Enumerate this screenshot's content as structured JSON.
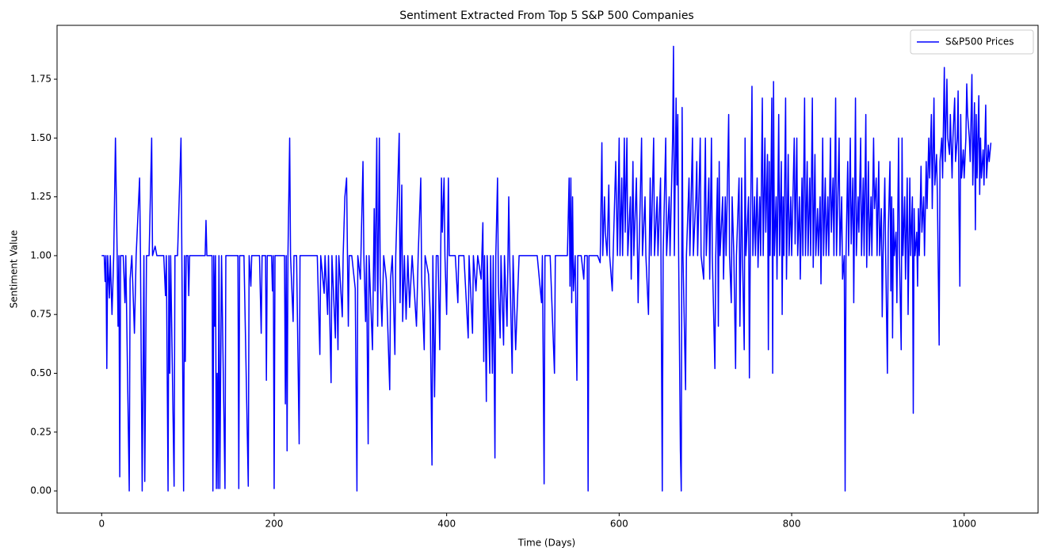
{
  "chart_data": {
    "type": "line",
    "title": "Sentiment Extracted From Top 5 S&P 500 Companies",
    "x_label": "Time (Days)",
    "y_label": "Sentiment Value",
    "legend": "upper right",
    "grid": false,
    "xlim": [
      -51.7,
      1085.7
    ],
    "ylim": [
      -0.094,
      1.979
    ],
    "xticks": [
      0,
      200,
      400,
      600,
      800,
      1000
    ],
    "yticks": [
      {
        "value": 0,
        "label": "0.00"
      },
      {
        "value": 0.25,
        "label": "0.25"
      },
      {
        "value": 0.5,
        "label": "0.50"
      },
      {
        "value": 0.75,
        "label": "0.75"
      },
      {
        "value": 1,
        "label": "1.00"
      },
      {
        "value": 1.25,
        "label": "1.25"
      },
      {
        "value": 1.5,
        "label": "1.50"
      },
      {
        "value": 1.75,
        "label": "1.75"
      }
    ],
    "x": [
      0,
      3,
      4,
      5,
      6,
      7,
      9,
      10,
      12,
      14,
      16,
      18,
      19,
      20,
      21,
      22,
      25,
      27,
      28,
      32,
      33,
      35,
      38,
      40,
      44,
      45,
      47,
      49,
      50,
      52,
      55,
      58,
      59,
      62,
      64,
      72,
      74,
      75,
      77,
      78,
      79,
      80,
      84,
      85,
      88,
      92,
      93,
      95,
      96,
      97,
      98,
      100,
      101,
      102,
      120,
      121,
      122,
      128,
      129,
      130,
      131,
      132,
      133,
      134,
      135,
      136,
      137,
      138,
      139,
      143,
      144,
      150,
      158,
      159,
      160,
      165,
      170,
      171,
      173,
      174,
      178,
      183,
      185,
      186,
      190,
      191,
      192,
      197,
      198,
      199,
      200,
      201,
      205,
      212,
      213,
      214,
      215,
      216,
      218,
      219,
      222,
      223,
      226,
      229,
      230,
      240,
      248,
      250,
      253,
      254,
      258,
      259,
      262,
      263,
      266,
      267,
      271,
      272,
      274,
      275,
      279,
      280,
      282,
      284,
      285,
      286,
      287,
      290,
      294,
      296,
      297,
      300,
      303,
      304,
      306,
      307,
      309,
      310,
      314,
      316,
      317,
      319,
      320,
      322,
      323,
      325,
      327,
      330,
      334,
      335,
      337,
      340,
      341,
      345,
      346,
      348,
      349,
      351,
      353,
      355,
      357,
      360,
      365,
      367,
      370,
      371,
      374,
      375,
      379,
      381,
      383,
      384,
      386,
      388,
      390,
      392,
      394,
      395,
      397,
      398,
      400,
      402,
      403,
      410,
      413,
      414,
      420,
      425,
      426,
      430,
      431,
      434,
      436,
      440,
      442,
      443,
      444,
      446,
      447,
      450,
      451,
      453,
      454,
      456,
      457,
      459,
      460,
      462,
      463,
      466,
      467,
      470,
      472,
      473,
      476,
      477,
      480,
      484,
      495,
      505,
      510,
      511,
      513,
      514,
      520,
      525,
      526,
      535,
      540,
      542,
      543,
      544,
      545,
      546,
      547,
      549,
      551,
      552,
      556,
      559,
      560,
      563,
      564,
      565,
      570,
      575,
      578,
      580,
      581,
      583,
      584,
      586,
      588,
      589,
      592,
      593,
      596,
      598,
      600,
      601,
      603,
      604,
      606,
      607,
      609,
      610,
      613,
      614,
      616,
      617,
      620,
      622,
      623,
      626,
      627,
      630,
      631,
      634,
      636,
      637,
      640,
      641,
      644,
      645,
      648,
      650,
      651,
      654,
      655,
      658,
      659,
      662,
      663,
      664,
      666,
      667,
      668,
      669,
      671,
      672,
      673,
      674,
      677,
      678,
      681,
      682,
      685,
      686,
      689,
      690,
      691,
      694,
      695,
      698,
      699,
      700,
      701,
      704,
      705,
      707,
      708,
      711,
      712,
      714,
      715,
      716,
      717,
      720,
      721,
      723,
      724,
      727,
      728,
      730,
      731,
      733,
      735,
      736,
      739,
      740,
      742,
      743,
      745,
      746,
      747,
      750,
      751,
      752,
      754,
      755,
      757,
      758,
      760,
      761,
      763,
      764,
      766,
      767,
      769,
      770,
      772,
      773,
      774,
      775,
      777,
      778,
      779,
      780,
      782,
      783,
      785,
      786,
      788,
      789,
      790,
      791,
      793,
      794,
      796,
      797,
      799,
      800,
      803,
      804,
      806,
      807,
      809,
      810,
      812,
      813,
      815,
      816,
      818,
      819,
      821,
      822,
      824,
      825,
      827,
      828,
      830,
      831,
      833,
      834,
      836,
      837,
      839,
      840,
      842,
      843,
      845,
      846,
      848,
      849,
      851,
      852,
      855,
      856,
      858,
      859,
      861,
      862,
      863,
      865,
      866,
      868,
      869,
      871,
      872,
      874,
      875,
      877,
      878,
      880,
      881,
      883,
      884,
      886,
      887,
      889,
      890,
      892,
      893,
      895,
      896,
      898,
      899,
      901,
      902,
      904,
      905,
      906,
      908,
      909,
      911,
      912,
      914,
      915,
      916,
      917,
      918,
      919,
      921,
      922,
      924,
      925,
      927,
      928,
      929,
      931,
      932,
      934,
      935,
      937,
      938,
      940,
      941,
      942,
      943,
      945,
      946,
      947,
      948,
      950,
      951,
      953,
      954,
      956,
      957,
      959,
      960,
      962,
      963,
      965,
      966,
      968,
      969,
      971,
      972,
      974,
      975,
      977,
      978,
      980,
      981,
      983,
      984,
      986,
      987,
      989,
      990,
      992,
      993,
      994,
      995,
      996,
      997,
      999,
      1000,
      1002,
      1003,
      1004,
      1006,
      1007,
      1009,
      1010,
      1012,
      1013,
      1014,
      1015,
      1017,
      1018,
      1019,
      1020,
      1022,
      1023,
      1025,
      1026,
      1028,
      1029,
      1031
    ],
    "series": [
      {
        "name": "S&P500 Prices",
        "color": "#0000ff",
        "values": [
          1,
          1,
          0.89,
          1,
          0.52,
          1,
          0.82,
          1,
          0.75,
          1,
          1.5,
          1,
          0.7,
          1,
          0.06,
          1,
          1,
          0.8,
          1,
          0,
          0.9,
          1,
          0.67,
          1,
          1.33,
          1,
          0,
          1,
          0.04,
          1,
          1,
          1.5,
          1,
          1.04,
          1,
          1,
          0.83,
          1,
          0,
          1,
          0.5,
          1,
          0.02,
          1,
          1,
          1.5,
          1,
          0,
          1,
          0.55,
          1,
          1,
          0.83,
          1,
          1,
          1.15,
          1,
          1,
          0,
          1,
          0.7,
          1,
          0.01,
          0.5,
          0.01,
          1,
          0.01,
          0.5,
          1,
          0.01,
          1,
          1,
          1,
          0.01,
          1,
          1,
          0.02,
          1,
          0.87,
          1,
          1,
          1,
          0.67,
          1,
          1,
          0.47,
          1,
          1,
          0.85,
          1,
          0.01,
          1,
          1,
          1,
          0.37,
          1,
          0.17,
          1,
          1.5,
          1,
          0.72,
          1,
          1,
          0.2,
          1,
          1,
          1,
          1,
          0.58,
          1,
          0.84,
          1,
          0.75,
          1,
          0.46,
          1,
          0.65,
          1,
          0.6,
          1,
          0.74,
          1,
          1.25,
          1.33,
          1,
          0.7,
          1,
          1,
          0.86,
          0,
          1,
          0.9,
          1.4,
          1,
          0.72,
          1,
          0.2,
          1,
          0.6,
          1.2,
          0.85,
          1.5,
          0.7,
          1.5,
          0.9,
          0.7,
          1,
          0.9,
          0.43,
          0.9,
          1,
          0.58,
          1,
          1.52,
          0.8,
          1.3,
          0.72,
          1,
          0.73,
          1,
          0.78,
          1,
          0.7,
          1,
          1.33,
          0.9,
          0.6,
          1,
          0.92,
          0.75,
          0.11,
          1,
          0.4,
          1,
          1,
          0.6,
          1.33,
          1.1,
          1.33,
          1,
          0.75,
          1.33,
          1,
          1,
          0.8,
          1,
          1,
          0.65,
          1,
          0.67,
          1,
          0.85,
          1,
          0.9,
          1.14,
          0.55,
          1,
          0.38,
          1,
          0.5,
          1,
          0.5,
          1,
          0.14,
          1,
          1.33,
          0.87,
          0.65,
          1,
          0.62,
          1,
          0.7,
          1.25,
          1,
          0.5,
          1,
          0.6,
          1,
          1,
          1,
          0.8,
          1,
          0.03,
          1,
          1,
          0.5,
          1,
          1,
          1,
          1.33,
          0.87,
          1.33,
          0.8,
          1.25,
          0.85,
          1,
          0.47,
          1,
          1,
          0.9,
          1,
          1,
          0,
          1,
          1,
          1,
          0.97,
          1.48,
          1,
          1.25,
          1.1,
          1,
          1.3,
          1,
          0.85,
          1,
          1.4,
          1,
          1.5,
          1,
          1.33,
          1,
          1.5,
          1.1,
          1.5,
          1,
          1.25,
          0.9,
          1.4,
          1,
          1.33,
          0.8,
          1,
          1.5,
          1,
          1.25,
          1,
          0.75,
          1.33,
          1,
          1.5,
          1,
          1.25,
          1,
          1.33,
          0,
          1,
          1.5,
          1,
          1.25,
          1,
          1.5,
          1.89,
          1,
          1.67,
          1.3,
          1.6,
          1,
          0.17,
          0,
          1.63,
          1,
          0.43,
          1,
          1.33,
          1,
          1.5,
          1,
          1.25,
          1.4,
          1,
          1.5,
          1,
          0.9,
          1.25,
          1.5,
          1,
          1.33,
          0.9,
          1.5,
          1,
          0.52,
          1,
          1.33,
          0.7,
          1.4,
          1,
          1.25,
          0.9,
          1.25,
          1,
          1.6,
          1,
          0.8,
          1.25,
          1,
          0.52,
          1,
          1.33,
          0.7,
          1.33,
          1,
          0.6,
          1.5,
          1,
          1.25,
          0.48,
          1,
          1.72,
          1,
          1.25,
          1,
          1.33,
          0.95,
          1.25,
          1,
          1.67,
          1,
          1.5,
          1.1,
          1.43,
          0.6,
          1.4,
          1,
          1.67,
          0.5,
          1.74,
          1,
          1.25,
          0.9,
          1.6,
          1,
          1.4,
          0.75,
          1.25,
          1,
          1.67,
          0.9,
          1.43,
          1,
          1.25,
          1,
          1.5,
          1.05,
          1.5,
          1,
          1.25,
          0.9,
          1.33,
          1,
          1.67,
          1,
          1.4,
          1,
          1.33,
          1,
          1.67,
          0.95,
          1.43,
          1,
          1.2,
          1,
          1.25,
          0.88,
          1.5,
          1,
          1.33,
          1,
          1.25,
          1,
          1.5,
          1.1,
          1.33,
          1,
          1.67,
          1,
          1.5,
          1,
          1.25,
          0.9,
          1,
          0,
          1,
          1.4,
          1,
          1.5,
          1.05,
          1.33,
          0.8,
          1.67,
          1,
          1.25,
          1.1,
          1.5,
          1,
          1.33,
          1,
          1.6,
          0.95,
          1.4,
          1,
          1.25,
          1,
          1.5,
          1.2,
          1.33,
          1,
          1.4,
          1,
          1.2,
          0.74,
          1,
          1.33,
          1,
          0.5,
          1.1,
          1.4,
          0.85,
          1.25,
          0.65,
          1.2,
          1,
          1.1,
          0.8,
          1.5,
          1,
          0.6,
          1.5,
          1,
          1.25,
          0.9,
          1.33,
          0.75,
          1.33,
          1,
          1.25,
          0.33,
          1.2,
          1,
          1.1,
          0.87,
          1.2,
          1,
          1.38,
          1.1,
          1.25,
          1,
          1.4,
          1.2,
          1.5,
          1.33,
          1.6,
          1.2,
          1.67,
          1.3,
          1.43,
          1.25,
          0.62,
          1.4,
          1.5,
          1.33,
          1.8,
          1.4,
          1.75,
          1.5,
          1.43,
          1.6,
          1.33,
          1.5,
          1.67,
          1.4,
          1.5,
          1.7,
          1.2,
          0.87,
          1.6,
          1.33,
          1.45,
          1.33,
          1.5,
          1.73,
          1.6,
          1.5,
          1.4,
          1.77,
          1.3,
          1.65,
          1.11,
          1.6,
          1.33,
          1.68,
          1.26,
          1.5,
          1.33,
          1.45,
          1.3,
          1.64,
          1.33,
          1.47,
          1.4,
          1.48
        ]
      }
    ]
  }
}
